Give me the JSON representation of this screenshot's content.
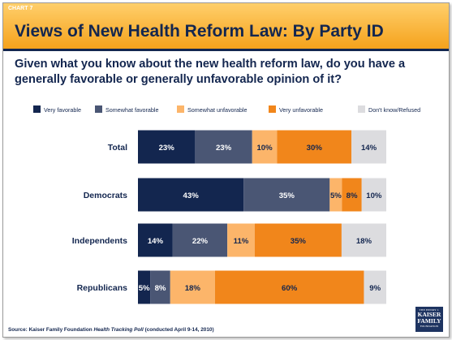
{
  "chart_label": "CHART 7",
  "title": "Views of New Health Reform Law: By Party ID",
  "question": "Given what you know about the new health reform law, do you have a generally favorable or generally unfavorable opinion of it?",
  "source": {
    "prefix": "Source: Kaiser Family Foundation ",
    "poll": "Health Tracking Poll",
    "suffix": " (conducted April 9-14, 2010)"
  },
  "logo": {
    "line1": "THE HENRY J.",
    "line2": "KAISER",
    "line3": "FAMILY",
    "line4": "FOUNDATION"
  },
  "colors": {
    "very_favorable": "#13264f",
    "somewhat_favorable": "#4a5674",
    "somewhat_unfavorable": "#fcb56a",
    "very_unfavorable": "#f1861b",
    "dont_know": "#dcdcdf"
  },
  "chart_data": {
    "type": "bar",
    "orientation": "horizontal",
    "stacked": true,
    "legend_position": "top",
    "categories": [
      "Total",
      "Democrats",
      "Independents",
      "Republicans"
    ],
    "series": [
      {
        "name": "Very favorable",
        "color": "#13264f",
        "label_color": "#ffffff",
        "values": [
          23,
          43,
          14,
          5
        ]
      },
      {
        "name": "Somewhat favorable",
        "color": "#4a5674",
        "label_color": "#ffffff",
        "values": [
          23,
          35,
          22,
          8
        ]
      },
      {
        "name": "Somewhat unfavorable",
        "color": "#fcb56a",
        "label_color": "#13264f",
        "values": [
          10,
          5,
          11,
          18
        ]
      },
      {
        "name": "Very unfavorable",
        "color": "#f1861b",
        "label_color": "#13264f",
        "values": [
          30,
          8,
          35,
          60
        ]
      },
      {
        "name": "Don't know/Refused",
        "color": "#dcdcdf",
        "label_color": "#13264f",
        "values": [
          14,
          10,
          18,
          9
        ]
      }
    ],
    "value_suffix": "%"
  }
}
